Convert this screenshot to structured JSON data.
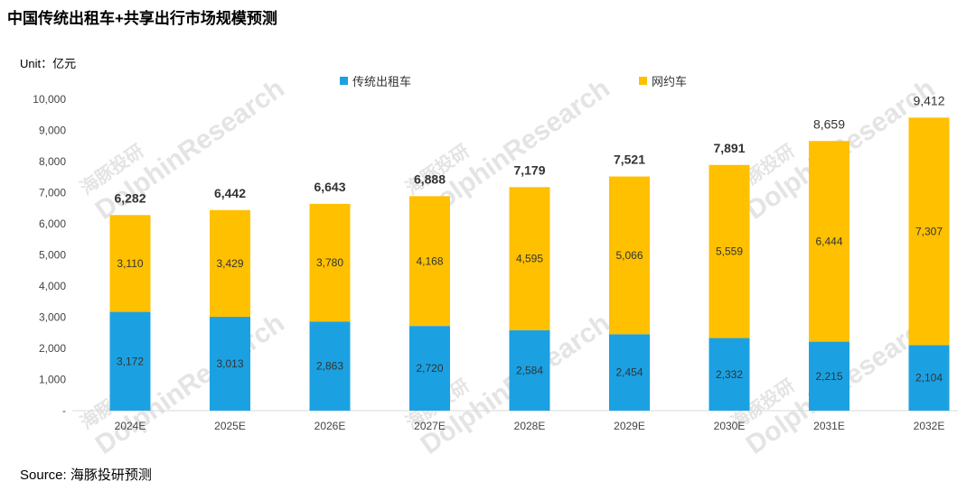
{
  "title": "中国传统出租车+共享出行市场规模预测",
  "unit": "Unit：亿元",
  "source": "Source: 海豚投研预测",
  "watermark": {
    "cn": "海豚投研",
    "en": "DolphinResearch"
  },
  "colors": {
    "taxi": "#1ba1e2",
    "ride_hailing": "#ffc000"
  },
  "chart_data": {
    "type": "bar",
    "stacked": true,
    "categories": [
      "2024E",
      "2025E",
      "2026E",
      "2027E",
      "2028E",
      "2029E",
      "2030E",
      "2031E",
      "2032E"
    ],
    "series": [
      {
        "name": "传统出租车",
        "values": [
          3172,
          3013,
          2863,
          2720,
          2584,
          2454,
          2332,
          2215,
          2104
        ]
      },
      {
        "name": "网约车",
        "values": [
          3110,
          3429,
          3780,
          4168,
          4595,
          5066,
          5559,
          6444,
          7307
        ]
      }
    ],
    "totals": [
      6282,
      6442,
      6643,
      6888,
      7179,
      7521,
      7891,
      8659,
      9412
    ],
    "bold_totals": [
      true,
      true,
      true,
      true,
      true,
      true,
      true,
      false,
      false
    ],
    "ylim": [
      0,
      10000
    ],
    "yticks": [
      0,
      1000,
      2000,
      3000,
      4000,
      5000,
      6000,
      7000,
      8000,
      9000,
      10000
    ],
    "ytick_labels": [
      "-",
      "1,000",
      "2,000",
      "3,000",
      "4,000",
      "5,000",
      "6,000",
      "7,000",
      "8,000",
      "9,000",
      "10,000"
    ],
    "legend_position": "top",
    "grid": false
  }
}
